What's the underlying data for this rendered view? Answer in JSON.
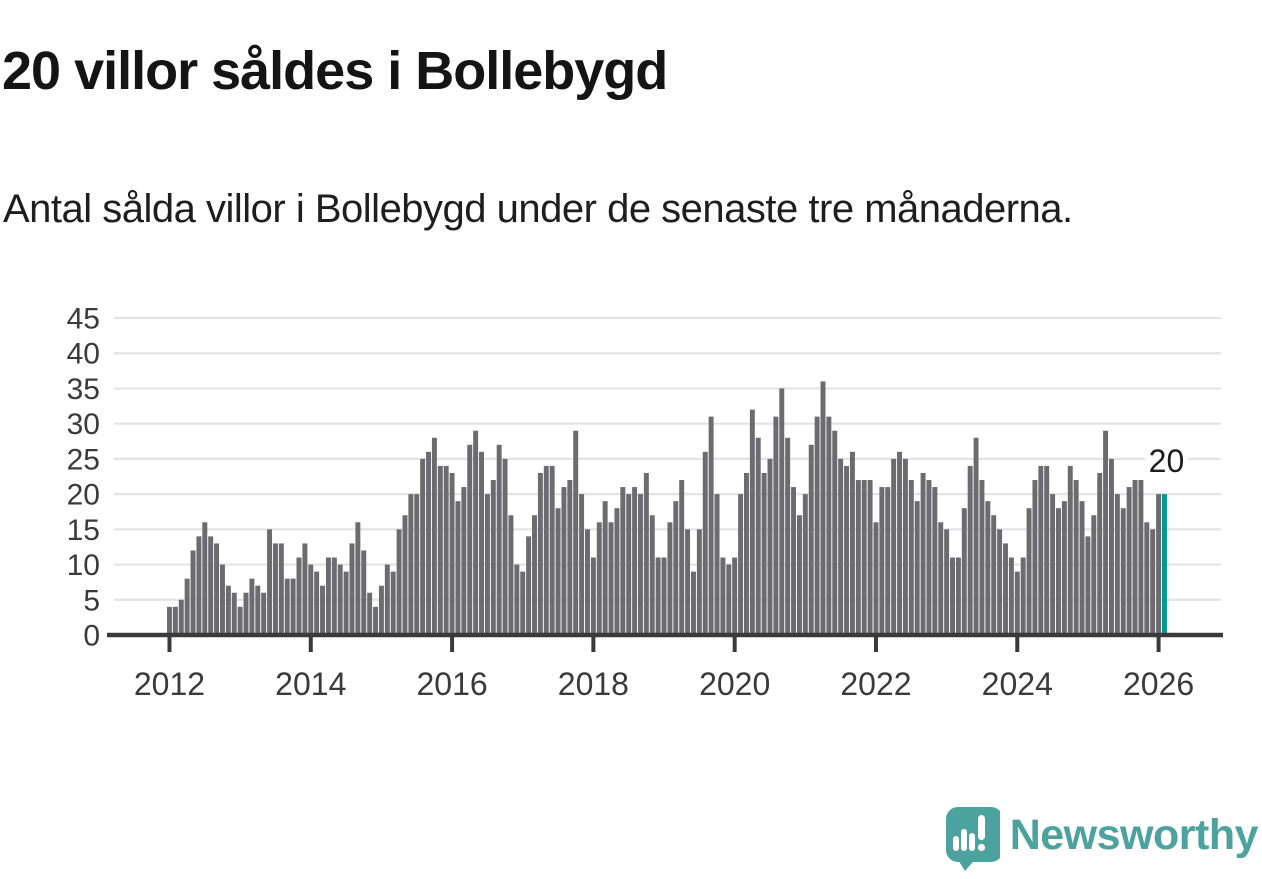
{
  "chart_data": {
    "type": "bar",
    "title": "20 villor såldes i Bollebygd",
    "subtitle": "Antal sålda villor i Bollebygd under de senaste tre månaderna.",
    "ylabel": "",
    "xlabel": "",
    "ylim": [
      0,
      45
    ],
    "y_ticks": [
      0,
      5,
      10,
      15,
      20,
      25,
      30,
      35,
      40,
      45
    ],
    "x_tick_labels": [
      "2012",
      "2014",
      "2016",
      "2018",
      "2020",
      "2022",
      "2024",
      "2026"
    ],
    "x_tick_every_n_bars": 24,
    "grid": true,
    "legend": false,
    "annotation": "20",
    "values": [
      4,
      4,
      5,
      8,
      12,
      14,
      16,
      14,
      13,
      10,
      7,
      6,
      4,
      6,
      8,
      7,
      6,
      15,
      13,
      13,
      8,
      8,
      11,
      13,
      10,
      9,
      7,
      11,
      11,
      10,
      9,
      13,
      16,
      12,
      6,
      4,
      7,
      10,
      9,
      15,
      17,
      20,
      20,
      25,
      26,
      28,
      24,
      24,
      23,
      19,
      21,
      27,
      29,
      26,
      20,
      22,
      27,
      25,
      17,
      10,
      9,
      14,
      17,
      23,
      24,
      24,
      18,
      21,
      22,
      29,
      20,
      15,
      11,
      16,
      19,
      16,
      18,
      21,
      20,
      21,
      20,
      23,
      17,
      11,
      11,
      16,
      19,
      22,
      15,
      9,
      15,
      26,
      31,
      20,
      11,
      10,
      11,
      20,
      23,
      32,
      28,
      23,
      25,
      31,
      35,
      28,
      21,
      17,
      20,
      27,
      31,
      36,
      31,
      29,
      25,
      24,
      26,
      22,
      22,
      22,
      16,
      21,
      21,
      25,
      26,
      25,
      22,
      19,
      23,
      22,
      21,
      16,
      15,
      11,
      11,
      18,
      24,
      28,
      22,
      19,
      17,
      15,
      13,
      11,
      9,
      11,
      18,
      22,
      24,
      24,
      20,
      18,
      19,
      24,
      22,
      19,
      14,
      17,
      23,
      29,
      25,
      20,
      18,
      21,
      22,
      22,
      16,
      15,
      20,
      20
    ],
    "highlight_last": true,
    "latest_value": 20,
    "colors": {
      "bar": "#6B6B70",
      "highlight": "#009A94",
      "grid": "#E3E3E3",
      "axis": "#3A3A3A",
      "tick_text": "#3A3A3A",
      "annotation_text": "#1D1D1D"
    }
  },
  "footer": {
    "brand": "Newsworthy",
    "logo_color": "#4BA29E"
  }
}
